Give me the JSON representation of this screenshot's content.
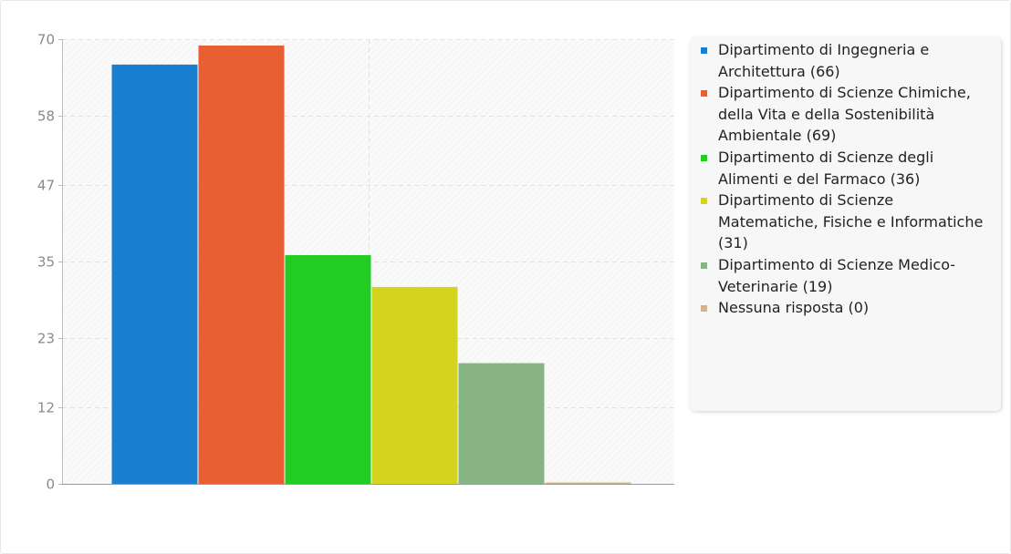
{
  "chart_data": {
    "type": "bar",
    "categories": [
      "Dipartimento di Ingegneria e Architettura",
      "Dipartimento di Scienze Chimiche, della Vita e della Sostenibilità Ambientale",
      "Dipartimento di Scienze degli Alimenti e del Farmaco",
      "Dipartimento di Scienze Matematiche, Fisiche e Informatiche",
      "Dipartimento di Scienze Medico-Veterinarie",
      "Nessuna risposta"
    ],
    "values": [
      66,
      69,
      36,
      31,
      19,
      0
    ],
    "colors": [
      "#1a7fcf",
      "#e85f33",
      "#22cc22",
      "#d4d41e",
      "#88b484",
      "#d2b48c"
    ],
    "yticks": [
      0,
      12,
      23,
      35,
      47,
      58,
      70
    ],
    "ylim": [
      0,
      70
    ],
    "grid": true,
    "legend_position": "right",
    "title": "",
    "xlabel": "",
    "ylabel": ""
  },
  "legend": {
    "items": [
      {
        "label": "Dipartimento di Ingegneria e Architettura (66)",
        "color": "#1a7fcf"
      },
      {
        "label": "Dipartimento di Scienze Chimiche, della Vita e della Sostenibilità Ambientale (69)",
        "color": "#e85f33"
      },
      {
        "label": "Dipartimento di Scienze degli Alimenti e del Farmaco (36)",
        "color": "#22cc22"
      },
      {
        "label": "Dipartimento di Scienze Matematiche, Fisiche e Informatiche (31)",
        "color": "#d4d41e"
      },
      {
        "label": "Dipartimento di Scienze Medico-Veterinarie (19)",
        "color": "#88b484"
      },
      {
        "label": "Nessuna risposta (0)",
        "color": "#d2b48c"
      }
    ]
  }
}
